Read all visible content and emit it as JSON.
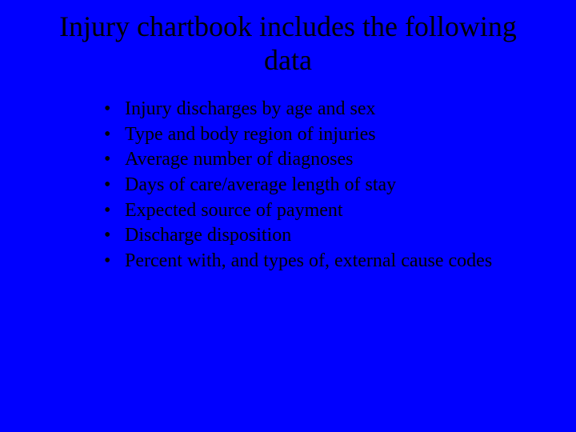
{
  "background_color": "#0000ff",
  "text_color": "#000000",
  "font_family": "Times New Roman",
  "title": {
    "text": "Injury chartbook includes the following data",
    "fontsize": 36,
    "align": "center"
  },
  "bullets": {
    "fontsize": 24,
    "items": [
      "Injury discharges by age and sex",
      "Type and body region of injuries",
      "Average number of diagnoses",
      "Days of care/average length of stay",
      "Expected source of payment",
      "Discharge disposition",
      "Percent with, and types of, external cause codes"
    ]
  }
}
